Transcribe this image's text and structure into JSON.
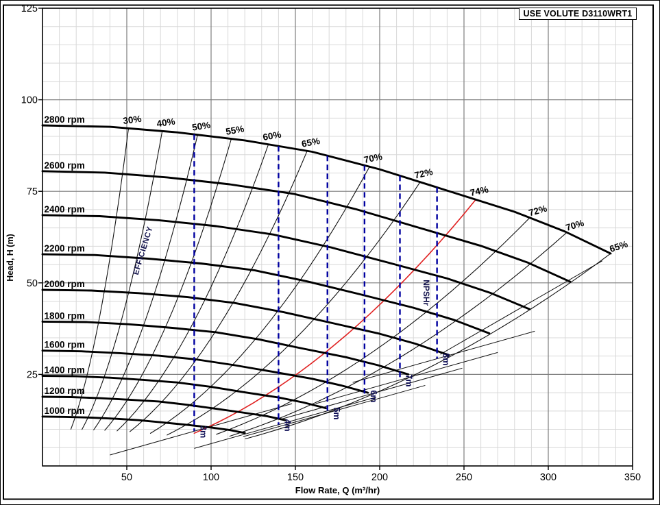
{
  "colors": {
    "curve": "#000000",
    "grid_minor": "#d8d8d8",
    "grid_major": "#7d7d7d",
    "npsh_dash": "#0000a0",
    "npsh_text": "#0d0d55",
    "best_efficiency_red": "#e02020",
    "frame": "#000000"
  },
  "chart_data": {
    "type": "line",
    "title": "USE VOLUTE D3110WRT1",
    "xlabel": "Flow Rate, Q (m³/hr)",
    "ylabel": "Head, H (m)",
    "xlim": [
      0,
      350
    ],
    "ylim": [
      0,
      125
    ],
    "x_ticks": [
      50,
      100,
      150,
      200,
      250,
      300,
      350
    ],
    "y_ticks": [
      25,
      50,
      75,
      100,
      125
    ],
    "grid": {
      "minor_x_step": 10,
      "minor_y_step": 5,
      "major_x_step": 50,
      "major_y_step": 25,
      "legend": "none"
    },
    "rpm_curves": [
      {
        "rpm": 2800,
        "label": "2800 rpm",
        "h0": 93,
        "points": [
          [
            0,
            93
          ],
          [
            40,
            92.6
          ],
          [
            80,
            91.1
          ],
          [
            120,
            88.9
          ],
          [
            160,
            85.8
          ],
          [
            200,
            81
          ],
          [
            240,
            75.2
          ],
          [
            280,
            69.4
          ],
          [
            310,
            64
          ],
          [
            337,
            58
          ]
        ]
      },
      {
        "rpm": 2600,
        "label": "2600 rpm",
        "h0": 80.5,
        "points": [
          [
            0,
            80.5
          ],
          [
            37,
            80.1
          ],
          [
            74,
            78.8
          ],
          [
            111,
            76.9
          ],
          [
            149,
            74.3
          ],
          [
            186,
            70.1
          ],
          [
            223,
            65.1
          ],
          [
            260,
            60.1
          ],
          [
            288,
            55.5
          ],
          [
            313,
            50.3
          ]
        ]
      },
      {
        "rpm": 2400,
        "label": "2400 rpm",
        "h0": 68.5,
        "points": [
          [
            0,
            68.5
          ],
          [
            34,
            68.2
          ],
          [
            69,
            67.1
          ],
          [
            103,
            65.5
          ],
          [
            137,
            63.2
          ],
          [
            171,
            59.7
          ],
          [
            206,
            55.4
          ],
          [
            240,
            51.2
          ],
          [
            266,
            47.2
          ],
          [
            289,
            42.8
          ]
        ]
      },
      {
        "rpm": 2200,
        "label": "2200 rpm",
        "h0": 57.8,
        "points": [
          [
            0,
            57.8
          ],
          [
            31,
            57.6
          ],
          [
            63,
            56.6
          ],
          [
            94,
            55.3
          ],
          [
            126,
            53.4
          ],
          [
            157,
            50.4
          ],
          [
            189,
            46.8
          ],
          [
            220,
            43.2
          ],
          [
            244,
            39.9
          ],
          [
            265,
            36.2
          ]
        ]
      },
      {
        "rpm": 2000,
        "label": "2000 rpm",
        "h0": 48.1,
        "points": [
          [
            0,
            48.1
          ],
          [
            29,
            47.9
          ],
          [
            57,
            47.2
          ],
          [
            86,
            46.1
          ],
          [
            114,
            44.5
          ],
          [
            143,
            42
          ],
          [
            171,
            39.1
          ],
          [
            200,
            36.1
          ],
          [
            221,
            33.4
          ],
          [
            241,
            30.3
          ]
        ]
      },
      {
        "rpm": 1800,
        "label": "1800 rpm",
        "h0": 39.4,
        "points": [
          [
            0,
            39.4
          ],
          [
            26,
            39.3
          ],
          [
            51,
            38.7
          ],
          [
            77,
            37.7
          ],
          [
            103,
            36.5
          ],
          [
            129,
            34.5
          ],
          [
            154,
            32.1
          ],
          [
            180,
            29.7
          ],
          [
            199,
            27.5
          ],
          [
            217,
            25
          ]
        ]
      },
      {
        "rpm": 1600,
        "label": "1600 rpm",
        "h0": 31.5,
        "points": [
          [
            0,
            31.5
          ],
          [
            23,
            31.3
          ],
          [
            46,
            30.8
          ],
          [
            69,
            30.1
          ],
          [
            91,
            29.1
          ],
          [
            114,
            27.5
          ],
          [
            137,
            25.7
          ],
          [
            160,
            23.8
          ],
          [
            177,
            22
          ],
          [
            193,
            20
          ]
        ]
      },
      {
        "rpm": 1400,
        "label": "1400 rpm",
        "h0": 24.6,
        "points": [
          [
            0,
            24.6
          ],
          [
            20,
            24.5
          ],
          [
            40,
            24.1
          ],
          [
            60,
            23.5
          ],
          [
            80,
            22.8
          ],
          [
            100,
            21.6
          ],
          [
            120,
            20.1
          ],
          [
            140,
            18.7
          ],
          [
            155,
            17.3
          ],
          [
            168,
            15.8
          ]
        ]
      },
      {
        "rpm": 1200,
        "label": "1200 rpm",
        "h0": 18.9,
        "points": [
          [
            0,
            18.9
          ],
          [
            17,
            18.8
          ],
          [
            34,
            18.5
          ],
          [
            51,
            18.1
          ],
          [
            69,
            17.6
          ],
          [
            86,
            16.7
          ],
          [
            103,
            15.6
          ],
          [
            120,
            14.5
          ],
          [
            133,
            13.6
          ],
          [
            144,
            12.5
          ]
        ]
      },
      {
        "rpm": 1000,
        "label": "1000 rpm",
        "h0": 13.5,
        "points": [
          [
            0,
            13.5
          ],
          [
            14,
            13.4
          ],
          [
            29,
            13.2
          ],
          [
            43,
            12.9
          ],
          [
            57,
            12.5
          ],
          [
            71,
            11.9
          ],
          [
            86,
            11.2
          ],
          [
            100,
            10.5
          ],
          [
            111,
            9.8
          ],
          [
            120,
            9
          ]
        ]
      }
    ],
    "efficiency_lines": {
      "left": [
        {
          "label": "30%",
          "q_top": 51,
          "angle": -7
        },
        {
          "label": "40%",
          "q_top": 71,
          "angle": -8
        },
        {
          "label": "50%",
          "q_top": 92,
          "angle": -9
        },
        {
          "label": "55%",
          "q_top": 112,
          "angle": -10
        },
        {
          "label": "60%",
          "q_top": 134,
          "angle": -10
        },
        {
          "label": "65%",
          "q_top": 157,
          "angle": -11
        },
        {
          "label": "70%",
          "q_top": 194,
          "angle": -12
        },
        {
          "label": "72%",
          "q_top": 224,
          "angle": -13
        }
      ],
      "best": {
        "label": "74%",
        "q_top": 257,
        "q_bottom": 90,
        "angle": -12
      },
      "right": [
        {
          "label": "72%",
          "q_top": 289,
          "angle": -16
        },
        {
          "label": "70%",
          "q_top": 311,
          "angle": -17
        },
        {
          "label": "65%",
          "q_top": 337,
          "angle": -18
        }
      ],
      "annotation": "EFFICIENCY",
      "annotation_pos": {
        "q": 61,
        "h": 58.6,
        "angle": -73
      }
    },
    "npsh": {
      "annotation": "NPSHr",
      "annotation_pos": {
        "q": 226,
        "h": 47.3,
        "angle": 90
      },
      "vlines": [
        {
          "label": "3m",
          "q": 90,
          "h_bottom": 9.5,
          "segment": [
            [
              40,
              3.0
            ],
            [
              148,
              17.0
            ]
          ]
        },
        {
          "label": "4m",
          "q": 140,
          "h_bottom": 11.3,
          "segment": [
            [
              90,
              4.8
            ],
            [
              198,
              18.8
            ]
          ]
        },
        {
          "label": "5m",
          "q": 169,
          "h_bottom": 14.5,
          "segment": [
            [
              119,
              8.0
            ],
            [
              227,
              22.0
            ]
          ]
        },
        {
          "label": "6m",
          "q": 191,
          "h_bottom": 19.2,
          "segment": [
            [
              141,
              12.7
            ],
            [
              249,
              26.7
            ]
          ]
        },
        {
          "label": "7m",
          "q": 212,
          "h_bottom": 23.5,
          "segment": [
            [
              162,
              17.0
            ],
            [
              270,
              31.0
            ]
          ]
        },
        {
          "label": "8m",
          "q": 234,
          "h_bottom": 29.3,
          "segment": [
            [
              184,
              22.8
            ],
            [
              292,
              36.8
            ]
          ]
        }
      ],
      "extension_line": [
        [
          236,
          30.5
        ],
        [
          332,
          56.0
        ]
      ]
    }
  }
}
